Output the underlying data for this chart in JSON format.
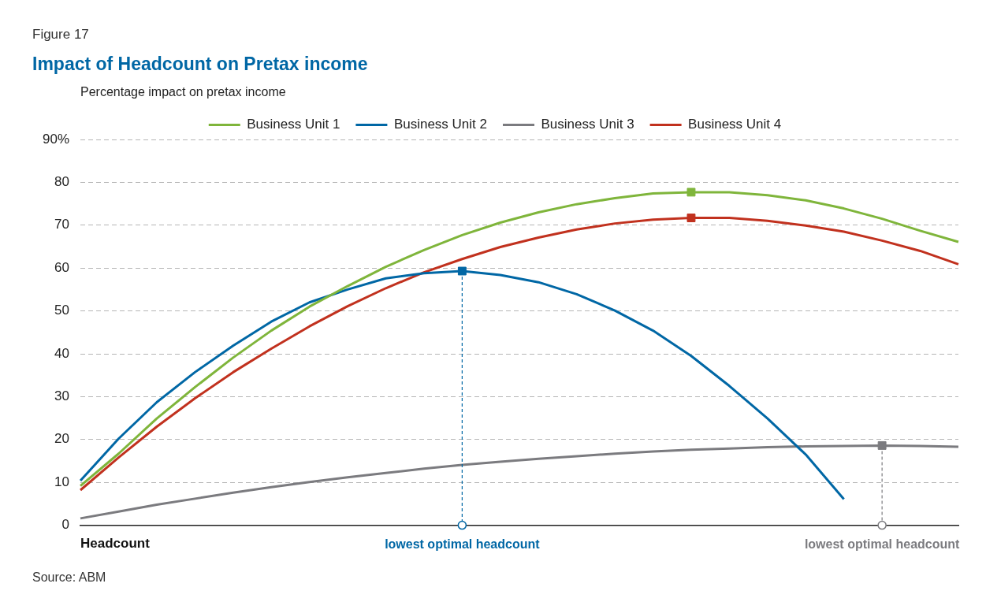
{
  "chart_data": {
    "type": "line",
    "subtitle": "Figure 17",
    "title": "Impact of Headcount on Pretax income",
    "xlabel": "Headcount",
    "ylabel": "Percentage impact on pretax income",
    "categories": [
      null,
      null,
      null,
      null,
      null,
      null,
      null,
      null,
      null,
      null,
      null,
      null,
      null,
      null,
      null,
      null,
      null,
      null,
      null,
      null,
      null,
      null,
      null,
      null
    ],
    "ylim": [
      0,
      90
    ],
    "yticks": [
      0,
      10,
      20,
      30,
      40,
      50,
      60,
      70,
      80,
      {
        "value": 90,
        "label": "90%"
      }
    ],
    "grid": "y",
    "legend": "top",
    "tick_labels": "y",
    "marker": "none",
    "line_style": "solid",
    "series": [
      {
        "name": "Business Unit 1",
        "color": "#7fb53b",
        "values": [
          9.2,
          16.7,
          24.9,
          32.2,
          39.1,
          45.4,
          51,
          55.8,
          60.3,
          64.2,
          67.7,
          70.6,
          73,
          74.9,
          76.3,
          77.4,
          77.7,
          77.7,
          77,
          75.8,
          73.9,
          71.5,
          68.7,
          66.1
        ]
      },
      {
        "name": "Business Unit 2",
        "color": "#0067a5",
        "values": [
          10.4,
          20.2,
          28.7,
          35.7,
          41.9,
          47.5,
          52,
          55,
          57.6,
          58.8,
          59.3,
          58.4,
          56.7,
          53.9,
          50.1,
          45.4,
          39.5,
          32.5,
          24.9,
          16.5,
          6.1,
          null,
          null,
          null
        ]
      },
      {
        "name": "Business Unit 3",
        "color": "#7b7b7f",
        "values": [
          1.6,
          3.2,
          4.8,
          6.2,
          7.6,
          8.9,
          10.1,
          11.2,
          12.2,
          13.2,
          14.1,
          14.8,
          15.5,
          16.1,
          16.7,
          17.2,
          17.6,
          17.9,
          18.2,
          18.4,
          18.5,
          18.6,
          18.5,
          18.3
        ]
      },
      {
        "name": "Business Unit 4",
        "color": "#c1311e",
        "values": [
          8.2,
          15.8,
          23,
          29.6,
          35.7,
          41.2,
          46.4,
          51.1,
          55.3,
          59,
          62.1,
          64.9,
          67.1,
          69,
          70.4,
          71.3,
          71.7,
          71.7,
          71,
          69.9,
          68.5,
          66.4,
          64,
          60.9
        ]
      },
      {
        "type": "scatter",
        "color": "#7fb53b",
        "marker": "square",
        "values": [
          null,
          null,
          null,
          null,
          null,
          null,
          null,
          null,
          null,
          null,
          null,
          null,
          null,
          null,
          null,
          null,
          77.7,
          null,
          null,
          null,
          null,
          null,
          null,
          null
        ]
      },
      {
        "type": "scatter",
        "color": "#0067a5",
        "marker": "square",
        "line_style": "dashed",
        "values": [
          null,
          null,
          null,
          null,
          null,
          null,
          null,
          null,
          null,
          null,
          59.3,
          null,
          null,
          null,
          null,
          null,
          null,
          null,
          null,
          null,
          null,
          null,
          null,
          null
        ]
      },
      {
        "type": "scatter",
        "color": "#7b7b7f",
        "marker": "square",
        "line_style": "dashed",
        "values": [
          null,
          null,
          null,
          null,
          null,
          null,
          null,
          null,
          null,
          null,
          null,
          null,
          null,
          null,
          null,
          null,
          null,
          null,
          null,
          null,
          null,
          18.6,
          null,
          null
        ]
      },
      {
        "type": "scatter",
        "color": "#c1311e",
        "marker": "square",
        "values": [
          null,
          null,
          null,
          null,
          null,
          null,
          null,
          null,
          null,
          null,
          null,
          null,
          null,
          null,
          null,
          null,
          71.7,
          null,
          null,
          null,
          null,
          null,
          null,
          null
        ]
      },
      {
        "type": "scatter",
        "color": "#0067a5",
        "marker": "circle",
        "values": [
          null,
          null,
          null,
          null,
          null,
          null,
          null,
          null,
          null,
          null,
          0,
          null,
          null,
          null,
          null,
          null,
          null,
          null,
          null,
          null,
          null,
          null,
          null,
          null
        ]
      },
      {
        "type": "scatter",
        "color": "#7b7b7f",
        "marker": "circle",
        "values": [
          null,
          null,
          null,
          null,
          null,
          null,
          null,
          null,
          null,
          null,
          null,
          null,
          null,
          null,
          null,
          null,
          null,
          null,
          null,
          null,
          null,
          0,
          null,
          null
        ]
      }
    ],
    "annotations": [
      "lowest optimal headcount",
      "lowest optimal headcount",
      "Source: ABM"
    ]
  }
}
